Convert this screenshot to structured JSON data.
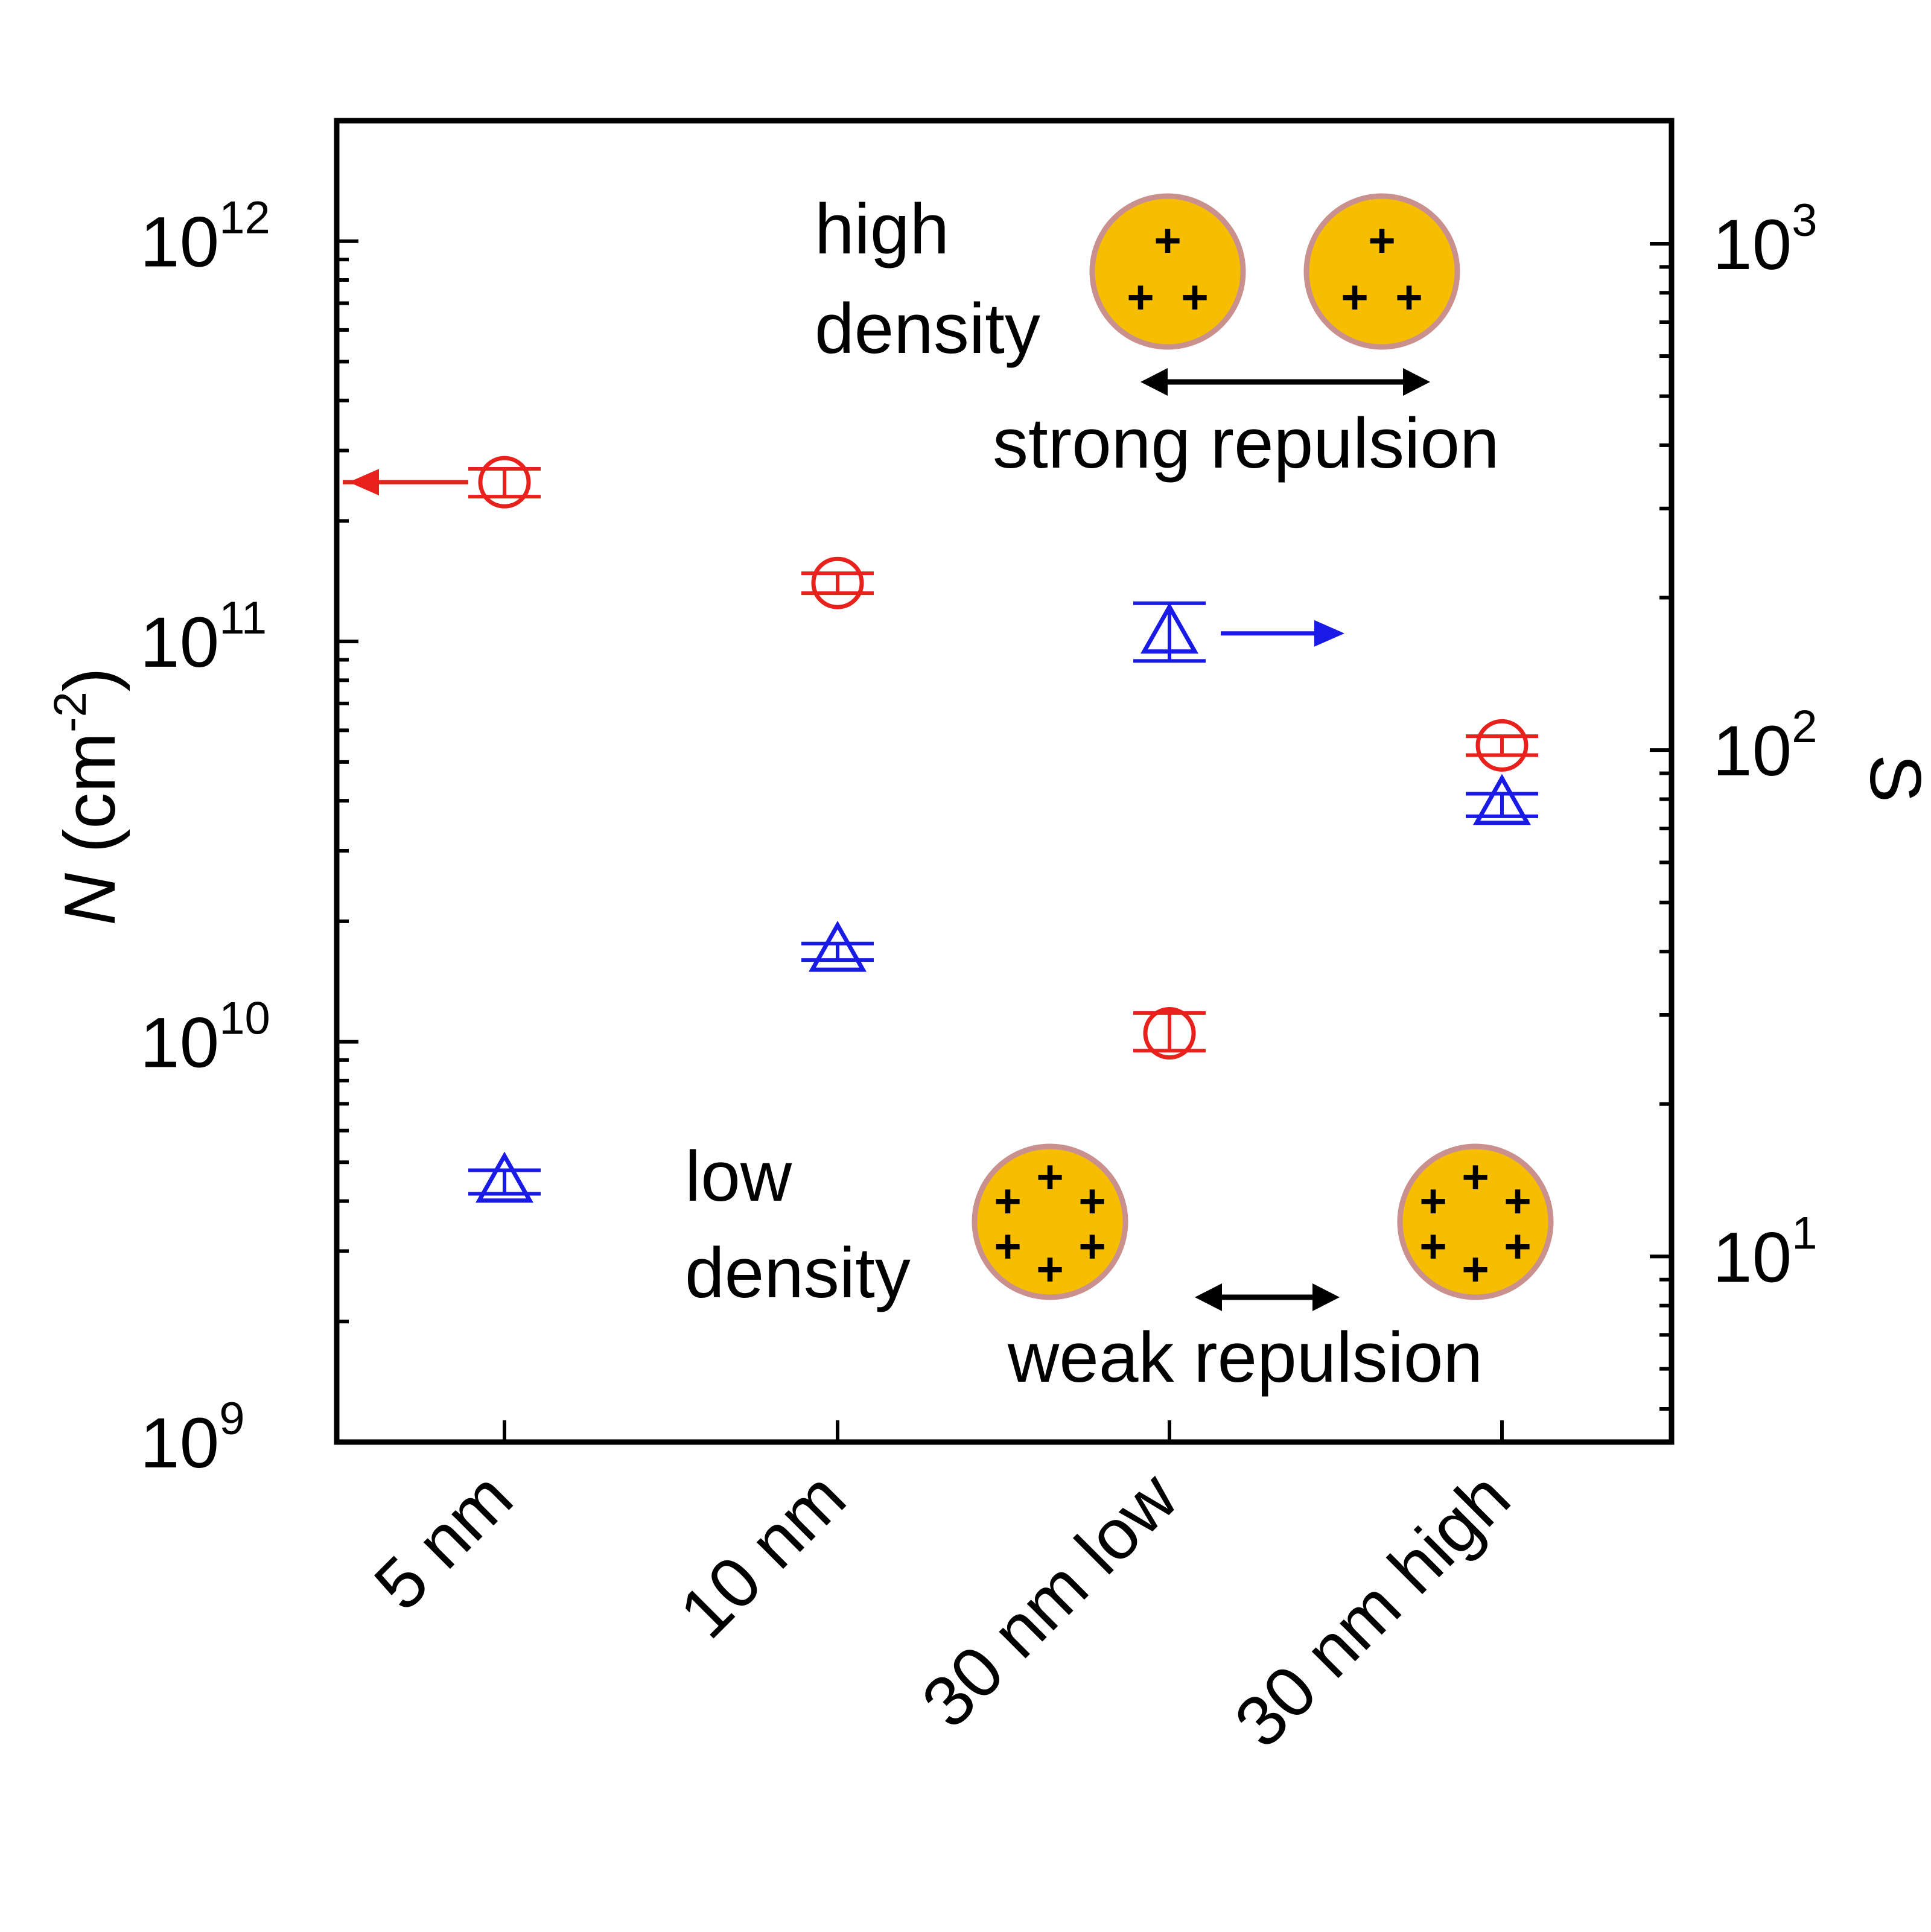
{
  "chart_data": {
    "type": "scatter",
    "categories": [
      "5 nm",
      "10 nm",
      "30 nm low",
      "30 nm high"
    ],
    "left_axis": {
      "label_symbol": "N",
      "label_unit": "(cm",
      "label_exp": "-2",
      "label_close": ")",
      "scale": "log",
      "range": [
        1000000000,
        2000000000000
      ],
      "ticks": [
        {
          "value": 1000000000,
          "base": "10",
          "exp": "9"
        },
        {
          "value": 10000000000,
          "base": "10",
          "exp": "10"
        },
        {
          "value": 100000000000,
          "base": "10",
          "exp": "11"
        },
        {
          "value": 1000000000000,
          "base": "10",
          "exp": "12"
        }
      ]
    },
    "right_axis": {
      "label": "S",
      "scale": "log",
      "range": [
        4.3,
        1750
      ],
      "ticks": [
        {
          "value": 10,
          "base": "10",
          "exp": "1"
        },
        {
          "value": 100,
          "base": "10",
          "exp": "2"
        },
        {
          "value": 1000,
          "base": "10",
          "exp": "3"
        }
      ]
    },
    "series": [
      {
        "name": "N",
        "axis": "left",
        "marker": "circle",
        "color": "#e8211d",
        "values": [
          250000000000,
          140000000000,
          10500000000,
          55000000000
        ],
        "err_low": [
          230000000000,
          132000000000,
          9500000000,
          52000000000
        ],
        "err_high": [
          270000000000,
          148000000000,
          11800000000,
          58000000000
        ]
      },
      {
        "name": "S",
        "axis": "right",
        "marker": "triangle",
        "color": "#1a1ae6",
        "values": [
          14,
          40,
          170,
          78
        ],
        "err_low": [
          13.3,
          38.5,
          150,
          74
        ],
        "err_high": [
          14.8,
          41.5,
          195,
          82
        ]
      }
    ],
    "axis_arrows": [
      {
        "series": "N",
        "points_to": "left",
        "category_index": 0
      },
      {
        "series": "S",
        "points_to": "right",
        "category_index": 2
      }
    ]
  },
  "insets": {
    "high": {
      "line1": "high",
      "line2": "density",
      "caption": "strong repulsion",
      "particle_color": "#f7be00",
      "rim_color": "#c9908e"
    },
    "low": {
      "line1": "low",
      "line2": "density",
      "caption": "weak repulsion",
      "particle_color": "#f7be00",
      "rim_color": "#c9908e"
    },
    "charge_symbol": "+"
  }
}
